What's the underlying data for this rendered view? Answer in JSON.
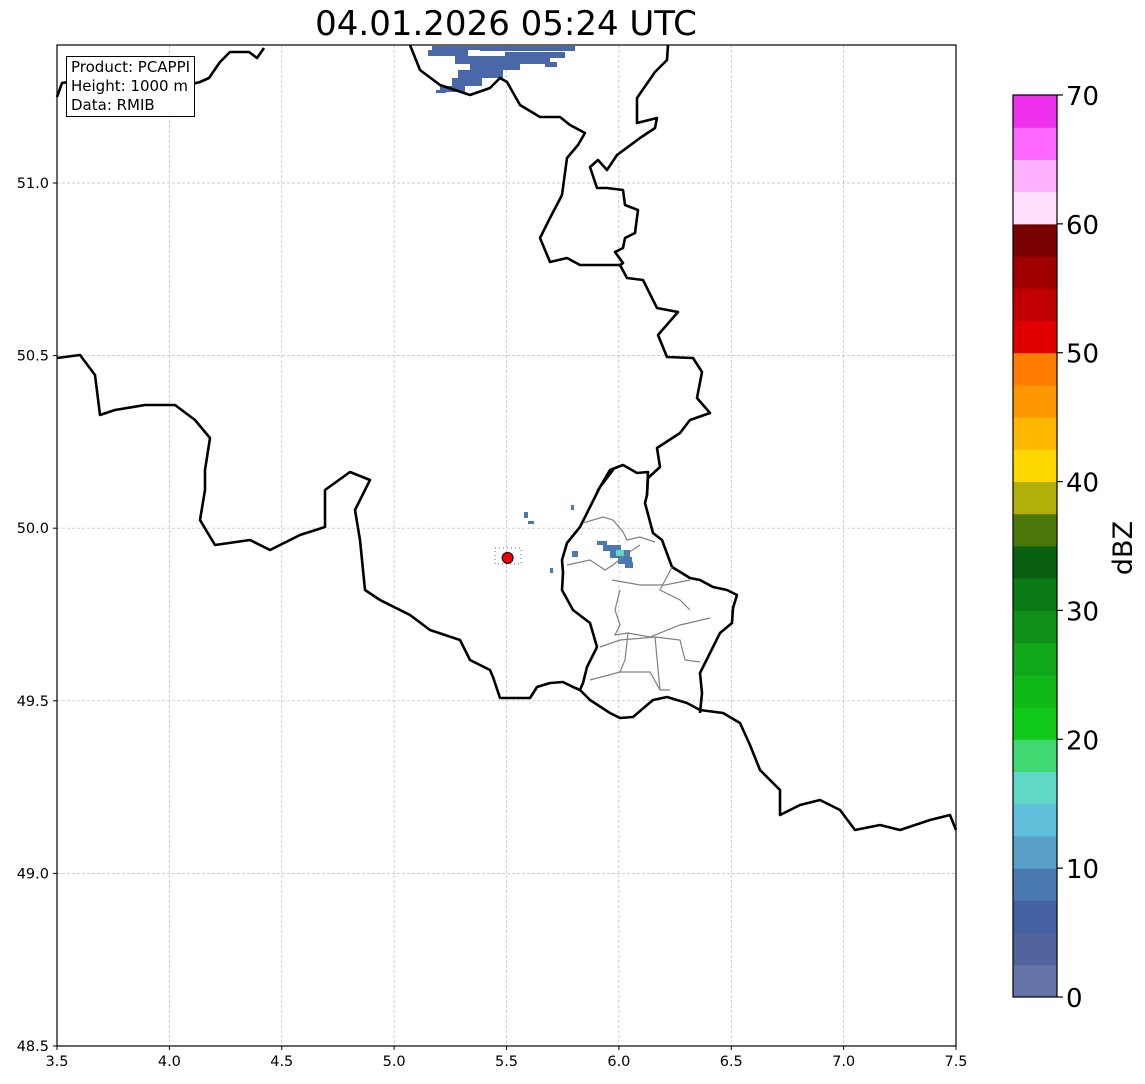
{
  "title": "04.01.2026 05:24 UTC",
  "info_box": {
    "product": "Product: PCAPPI",
    "height": "Height: 1000 m",
    "data": "Data: RMIB"
  },
  "map": {
    "lon_range": [
      3.5,
      7.5
    ],
    "lat_range": [
      48.5,
      51.4
    ],
    "x_ticks": [
      "3.5",
      "4.0",
      "4.5",
      "5.0",
      "5.5",
      "6.0",
      "6.5",
      "7.0",
      "7.5"
    ],
    "y_ticks": [
      "48.5",
      "49.0",
      "49.5",
      "50.0",
      "50.5",
      "51.0"
    ],
    "radar_site": {
      "lon": 5.505,
      "lat": 49.914,
      "color": "#ee0000"
    }
  },
  "colorbar": {
    "label": "dBZ",
    "min": 0,
    "max": 70,
    "step": 2.5,
    "ticks": [
      "0",
      "10",
      "20",
      "30",
      "40",
      "50",
      "60",
      "70"
    ],
    "colors": [
      "#6474a8",
      "#52649e",
      "#4560a3",
      "#4a78b0",
      "#58a0c8",
      "#60c0dc",
      "#60d8c8",
      "#40d870",
      "#10c818",
      "#10b818",
      "#10a818",
      "#0e9018",
      "#0a7a14",
      "#086010",
      "#4a780a",
      "#b0b008",
      "#ffd800",
      "#ffb800",
      "#ff9800",
      "#ff7c00",
      "#e00000",
      "#c00000",
      "#a00000",
      "#780000",
      "#ffe0ff",
      "#ffb0ff",
      "#ff68ff",
      "#ee30ee"
    ]
  }
}
